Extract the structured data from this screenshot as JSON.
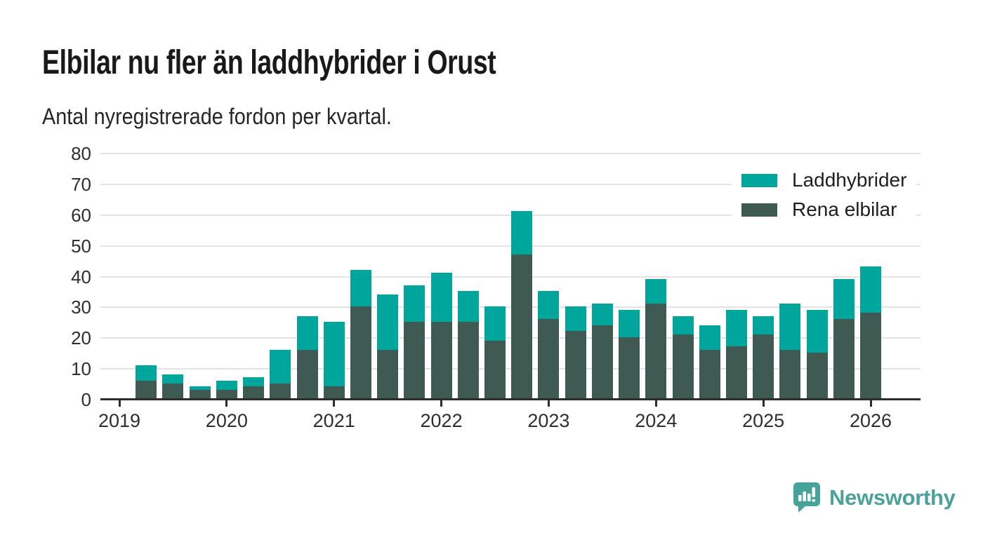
{
  "title": "Elbilar nu fler än laddhybrider i Orust",
  "subtitle": "Antal nyregistrerade fordon per kvartal.",
  "footer": {
    "brand": "Newsworthy"
  },
  "colors": {
    "laddhybrider": "#00a69b",
    "rena_elbilar": "#3e5a52",
    "brand": "#46a29b",
    "axis": "#2d2d2d",
    "grid": "#e3e3e3",
    "background": "#ffffff"
  },
  "legend": [
    {
      "label": "Laddhybrider",
      "color": "#00a69b"
    },
    {
      "label": "Rena elbilar",
      "color": "#3e5a52"
    }
  ],
  "chart_data": {
    "type": "bar",
    "stacked": true,
    "title": "Elbilar nu fler än laddhybrider i Orust",
    "subtitle": "Antal nyregistrerade fordon per kvartal.",
    "categories": [
      "2019 Q2",
      "2019 Q3",
      "2019 Q4",
      "2020 Q1",
      "2020 Q2",
      "2020 Q3",
      "2020 Q4",
      "2021 Q1",
      "2021 Q2",
      "2021 Q3",
      "2021 Q4",
      "2022 Q1",
      "2022 Q2",
      "2022 Q3",
      "2022 Q4",
      "2023 Q1",
      "2023 Q2",
      "2023 Q3",
      "2023 Q4",
      "2024 Q1",
      "2024 Q2",
      "2024 Q3",
      "2024 Q4",
      "2025 Q1",
      "2025 Q2",
      "2025 Q3",
      "2025 Q4",
      "2026 Q1"
    ],
    "series": [
      {
        "name": "Laddhybrider",
        "color": "#00a69b",
        "values": [
          5,
          3,
          1,
          3,
          3,
          11,
          11,
          21,
          12,
          18,
          12,
          16,
          10,
          11,
          14,
          9,
          8,
          7,
          9,
          8,
          6,
          8,
          12,
          6,
          15,
          14,
          13,
          15
        ]
      },
      {
        "name": "Rena elbilar",
        "color": "#3e5a52",
        "values": [
          6,
          5,
          3,
          3,
          4,
          5,
          16,
          4,
          30,
          16,
          25,
          25,
          25,
          19,
          47,
          26,
          22,
          24,
          20,
          31,
          21,
          16,
          17,
          21,
          16,
          15,
          26,
          28
        ]
      }
    ],
    "totals": [
      11,
      8,
      4,
      6,
      7,
      16,
      27,
      25,
      42,
      34,
      37,
      41,
      35,
      30,
      61,
      35,
      30,
      31,
      29,
      39,
      27,
      24,
      29,
      27,
      31,
      29,
      39,
      43
    ],
    "ylim": [
      0,
      80
    ],
    "yticks": [
      0,
      10,
      20,
      30,
      40,
      50,
      60,
      70,
      80
    ],
    "x_year_labels": [
      "2019",
      "2020",
      "2021",
      "2022",
      "2023",
      "2024",
      "2025",
      "2026"
    ],
    "grid": true,
    "legend_position": "top-right"
  }
}
